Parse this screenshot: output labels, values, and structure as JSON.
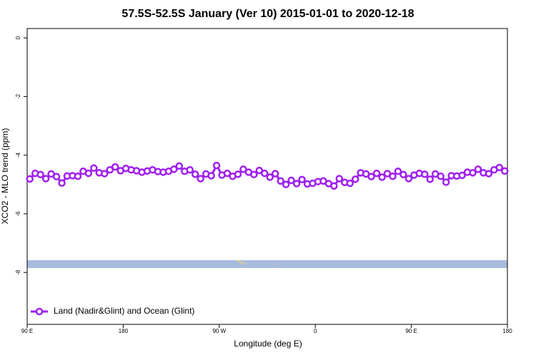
{
  "chart_data": {
    "type": "line",
    "title": "57.5S-52.5S January (Ver 10)   2015-01-01 to 2020-12-18",
    "x_label": "Longitude (deg E)",
    "y_label": "XCO2 - MLO trend (ppm)",
    "xlim": [
      90,
      540
    ],
    "xticks": [
      {
        "value": 90,
        "label": "90 E"
      },
      180,
      {
        "value": 270,
        "label": "90 W"
      },
      {
        "value": 360,
        "label": "0"
      },
      {
        "value": 450,
        "label": "90 E"
      },
      {
        "value": 540,
        "label": "180"
      }
    ],
    "ylim": [
      -9.77,
      0.32
    ],
    "yticks": [
      0,
      -2,
      -4,
      -6,
      -8
    ],
    "legend_position": "bottom-left",
    "x": [
      92.5,
      97.5,
      102.5,
      107.5,
      112.5,
      117.5,
      122.5,
      127.5,
      132.5,
      137.5,
      142.5,
      147.5,
      152.5,
      157.5,
      162.5,
      167.5,
      172.5,
      177.5,
      182.5,
      187.5,
      192.5,
      197.5,
      202.5,
      207.5,
      212.5,
      217.5,
      222.5,
      227.5,
      232.5,
      237.5,
      242.5,
      247.5,
      252.5,
      257.5,
      262.5,
      267.5,
      272.5,
      277.5,
      282.5,
      287.5,
      292.5,
      297.5,
      302.5,
      307.5,
      312.5,
      317.5,
      322.5,
      327.5,
      332.5,
      337.5,
      342.5,
      347.5,
      352.5,
      357.5,
      362.5,
      367.5,
      372.5,
      377.5,
      382.5,
      387.5,
      392.5,
      397.5,
      402.5,
      407.5,
      412.5,
      417.5,
      422.5,
      427.5,
      432.5,
      437.5,
      442.5,
      447.5,
      452.5,
      457.5,
      462.5,
      467.5,
      472.5,
      477.5,
      482.5,
      487.5,
      492.5,
      497.5,
      502.5,
      507.5,
      512.5,
      517.5,
      522.5,
      527.5,
      532.5,
      537.5
    ],
    "series": [
      {
        "name": "Land (Nadir&Glint) and Ocean (Glint)",
        "color": "#a020f0",
        "values": [
          -4.81,
          -4.62,
          -4.66,
          -4.8,
          -4.64,
          -4.73,
          -4.95,
          -4.71,
          -4.7,
          -4.72,
          -4.55,
          -4.62,
          -4.44,
          -4.6,
          -4.63,
          -4.5,
          -4.4,
          -4.53,
          -4.45,
          -4.5,
          -4.53,
          -4.58,
          -4.54,
          -4.5,
          -4.56,
          -4.58,
          -4.55,
          -4.48,
          -4.37,
          -4.55,
          -4.5,
          -4.65,
          -4.8,
          -4.64,
          -4.7,
          -4.35,
          -4.68,
          -4.62,
          -4.72,
          -4.65,
          -4.48,
          -4.58,
          -4.66,
          -4.52,
          -4.62,
          -4.75,
          -4.63,
          -4.88,
          -5.0,
          -4.86,
          -4.97,
          -4.83,
          -4.98,
          -4.96,
          -4.9,
          -4.88,
          -4.97,
          -5.05,
          -4.8,
          -4.93,
          -4.96,
          -4.82,
          -4.6,
          -4.64,
          -4.73,
          -4.62,
          -4.75,
          -4.63,
          -4.72,
          -4.55,
          -4.66,
          -4.8,
          -4.68,
          -4.62,
          -4.65,
          -4.82,
          -4.64,
          -4.72,
          -4.92,
          -4.7,
          -4.71,
          -4.69,
          -4.58,
          -4.6,
          -4.48,
          -4.6,
          -4.63,
          -4.5,
          -4.42,
          -4.54
        ]
      }
    ]
  }
}
